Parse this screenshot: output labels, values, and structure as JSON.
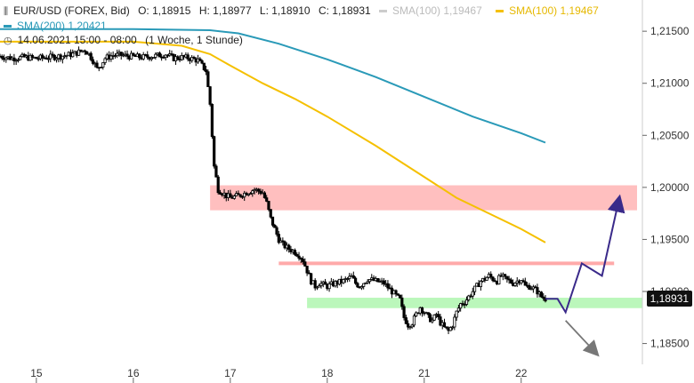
{
  "header": {
    "symbol": "EUR/USD (FOREX, Bid)",
    "ohlc": {
      "o": "O: 1,18915",
      "h": "H: 1,18977",
      "l": "L: 1,18910",
      "c": "C: 1,18931"
    },
    "sma100_gray": "SMA(100)  1,19467",
    "sma100_gold": "SMA(100)  1,19467",
    "sma200": "SMA(200)  1,20421",
    "datetime": "14.06.2021 15:00 - 08:00",
    "timeframe": "(1 Woche, 1 Stunde)",
    "icon_chart": "candlestick-icon",
    "icon_clock": "clock-icon"
  },
  "colors": {
    "candle": "#000000",
    "sma100": "#f5c000",
    "sma200": "#2a9ab8",
    "resistance_zone": "#ffaaaa",
    "support_zone": "#aaf5aa",
    "resistance_line": "#ffaaaa",
    "arrow_up": "#3a2a8a",
    "arrow_down": "#777777"
  },
  "price_label": "1,18931",
  "chart_data": {
    "type": "candlestick",
    "ylim": [
      1.183,
      1.218
    ],
    "yticks": [
      "1,21500",
      "1,21000",
      "1,20500",
      "1,20000",
      "1,19500",
      "1,19000",
      "1,18500"
    ],
    "ytick_values": [
      1.215,
      1.21,
      1.205,
      1.2,
      1.195,
      1.19,
      1.185
    ],
    "xticks": [
      "15",
      "16",
      "17",
      "18",
      "21",
      "22"
    ],
    "xtick_positions": [
      0,
      24,
      48,
      72,
      96,
      120
    ],
    "xlim": [
      -9,
      150
    ],
    "close_path": [
      [
        -9,
        1.2126
      ],
      [
        -6,
        1.2124
      ],
      [
        -3,
        1.2125
      ],
      [
        0,
        1.2124
      ],
      [
        3,
        1.2125
      ],
      [
        6,
        1.2126
      ],
      [
        9,
        1.2128
      ],
      [
        12,
        1.2132
      ],
      [
        13,
        1.2128
      ],
      [
        14,
        1.2122
      ],
      [
        15,
        1.2114
      ],
      [
        16,
        1.2118
      ],
      [
        17,
        1.2124
      ],
      [
        19,
        1.2127
      ],
      [
        21,
        1.2127
      ],
      [
        23,
        1.2126
      ],
      [
        26,
        1.2125
      ],
      [
        29,
        1.2126
      ],
      [
        32,
        1.2128
      ],
      [
        34,
        1.2124
      ],
      [
        36,
        1.2125
      ],
      [
        38,
        1.2124
      ],
      [
        40,
        1.2122
      ],
      [
        41,
        1.2117
      ],
      [
        42,
        1.2112
      ],
      [
        43,
        1.208
      ],
      [
        44,
        1.202
      ],
      [
        45,
        1.1998
      ],
      [
        46,
        1.1995
      ],
      [
        47,
        1.1992
      ],
      [
        48,
        1.199
      ],
      [
        50,
        1.1992
      ],
      [
        52,
        1.1995
      ],
      [
        54,
        1.1998
      ],
      [
        56,
        1.1995
      ],
      [
        57,
        1.1985
      ],
      [
        58,
        1.197
      ],
      [
        59,
        1.196
      ],
      [
        60,
        1.195
      ],
      [
        61,
        1.1945
      ],
      [
        62,
        1.1942
      ],
      [
        63,
        1.194
      ],
      [
        64,
        1.1938
      ],
      [
        65,
        1.1935
      ],
      [
        66,
        1.193
      ],
      [
        67,
        1.192
      ],
      [
        68,
        1.191
      ],
      [
        69,
        1.1905
      ],
      [
        70,
        1.1908
      ],
      [
        72,
        1.1905
      ],
      [
        74,
        1.1908
      ],
      [
        76,
        1.191
      ],
      [
        78,
        1.1914
      ],
      [
        79,
        1.1908
      ],
      [
        80,
        1.1905
      ],
      [
        82,
        1.1912
      ],
      [
        84,
        1.191
      ],
      [
        86,
        1.1908
      ],
      [
        88,
        1.19
      ],
      [
        90,
        1.1892
      ],
      [
        91,
        1.1875
      ],
      [
        92,
        1.1868
      ],
      [
        93,
        1.187
      ],
      [
        94,
        1.1878
      ],
      [
        95,
        1.1885
      ],
      [
        96,
        1.188
      ],
      [
        97,
        1.1875
      ],
      [
        98,
        1.1872
      ],
      [
        99,
        1.1878
      ],
      [
        100,
        1.187
      ],
      [
        101,
        1.1865
      ],
      [
        102,
        1.1862
      ],
      [
        103,
        1.1868
      ],
      [
        104,
        1.188
      ],
      [
        105,
        1.1888
      ],
      [
        106,
        1.189
      ],
      [
        107,
        1.1895
      ],
      [
        108,
        1.19
      ],
      [
        109,
        1.1905
      ],
      [
        110,
        1.191
      ],
      [
        111,
        1.1912
      ],
      [
        112,
        1.1915
      ],
      [
        113,
        1.1912
      ],
      [
        114,
        1.191
      ],
      [
        115,
        1.1915
      ],
      [
        116,
        1.1912
      ],
      [
        117,
        1.191
      ],
      [
        118,
        1.1908
      ],
      [
        119,
        1.191
      ],
      [
        120,
        1.1912
      ],
      [
        121,
        1.1905
      ],
      [
        122,
        1.1905
      ],
      [
        123,
        1.1903
      ],
      [
        124,
        1.19
      ],
      [
        125,
        1.1895
      ],
      [
        126,
        1.1893
      ]
    ],
    "sma200_path": [
      [
        -9,
        1.2152
      ],
      [
        24,
        1.2152
      ],
      [
        43,
        1.2151
      ],
      [
        50,
        1.2148
      ],
      [
        60,
        1.2138
      ],
      [
        72,
        1.2123
      ],
      [
        84,
        1.2106
      ],
      [
        96,
        1.2087
      ],
      [
        108,
        1.2068
      ],
      [
        120,
        1.2052
      ],
      [
        126,
        1.2043
      ]
    ],
    "sma100_path": [
      [
        -9,
        1.214
      ],
      [
        24,
        1.214
      ],
      [
        36,
        1.2136
      ],
      [
        43,
        1.2128
      ],
      [
        48,
        1.2117
      ],
      [
        56,
        1.21
      ],
      [
        64,
        1.2085
      ],
      [
        72,
        1.2068
      ],
      [
        84,
        1.204
      ],
      [
        96,
        1.201
      ],
      [
        104,
        1.199
      ],
      [
        112,
        1.1975
      ],
      [
        120,
        1.196
      ],
      [
        126,
        1.1947
      ]
    ],
    "resistance_zone": {
      "x0": 43,
      "x1": 150,
      "y0": 1.1978,
      "y1": 1.2002
    },
    "support_zone": {
      "x0": 67,
      "x1": 150,
      "y0": 1.1884,
      "y1": 1.1894
    },
    "resistance_line": {
      "x0": 60,
      "x1": 143,
      "y": 1.1927
    },
    "forecast_up": [
      [
        126,
        1.1893
      ],
      [
        129,
        1.1893
      ],
      [
        131,
        1.188
      ],
      [
        135,
        1.1927
      ],
      [
        140,
        1.1915
      ],
      [
        144,
        1.1985
      ]
    ],
    "forecast_down": [
      [
        131,
        1.1872
      ],
      [
        138,
        1.1843
      ]
    ]
  }
}
